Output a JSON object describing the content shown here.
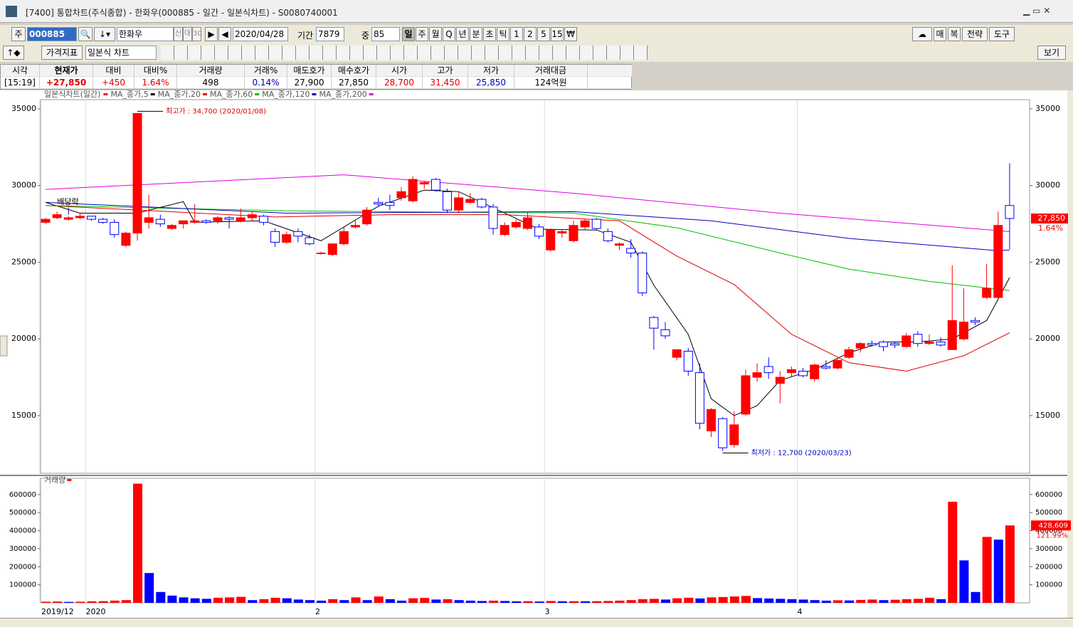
{
  "window": {
    "title": "[7400] 통합차트(주식종합) - 한화우(000885 - 일간 - 일본식차트) - S0080740001"
  },
  "toolbar": {
    "code_label": "주",
    "code": "000885",
    "name": "한화우",
    "name_tags": [
      "신",
      "대",
      "30"
    ],
    "date": "2020/04/28",
    "period_label": "기간",
    "period": "7879",
    "count_label": "중",
    "count": "85",
    "period_buttons": [
      "일",
      "주",
      "월",
      "Q",
      "년",
      "분",
      "초",
      "틱",
      "1",
      "2",
      "5",
      "15",
      "₩"
    ],
    "right_buttons": [
      "매",
      "복",
      "전략",
      "도구"
    ],
    "indicator": "가격지표",
    "chart_style": "일본식 차트",
    "view": "보기"
  },
  "quote": {
    "headers": [
      "시각",
      "현재가",
      "대비",
      "대비%",
      "거래량",
      "거래%",
      "매도호가",
      "매수호가",
      "시가",
      "고가",
      "저가",
      "거래대금"
    ],
    "row": [
      "[15:19]",
      "+27,850",
      "+450",
      "1.64%",
      "498",
      "0.14%",
      "27,900",
      "27,850",
      "28,700",
      "31,450",
      "25,850",
      "124억원"
    ]
  },
  "chart_data": {
    "type": "candlestick",
    "title": "일본식차트(일간)",
    "up_color": "#ff0000",
    "down_color": "#0000ff",
    "grid": true,
    "ylim": [
      11240,
      35600
    ],
    "yticks": [
      15000,
      20000,
      25000,
      30000,
      35000
    ],
    "xticks": [
      {
        "value": -0.5,
        "label": "2019/12"
      },
      {
        "value": 3.5,
        "label": "2020"
      },
      {
        "value": 23.5,
        "label": "2"
      },
      {
        "value": 43.5,
        "label": "3"
      },
      {
        "value": 65.5,
        "label": "4"
      }
    ],
    "open": [
      27600,
      27900,
      27800,
      27900,
      28000,
      27800,
      27600,
      26100,
      26900,
      27600,
      27800,
      27200,
      27500,
      27600,
      27700,
      27700,
      27900,
      27700,
      27900,
      28000,
      27000,
      26300,
      27000,
      26600,
      25600,
      25500,
      26200,
      27300,
      27500,
      28900,
      28900,
      29200,
      29000,
      30100,
      30400,
      29600,
      28400,
      28900,
      29100,
      28600,
      26800,
      27300,
      27200,
      27300,
      25800,
      26900,
      26400,
      27300,
      27800,
      27000,
      26100,
      25900,
      25600,
      21400,
      20600,
      18800,
      19200,
      17800,
      14000,
      14800,
      13100,
      15100,
      17500,
      18200,
      17100,
      17800,
      17900,
      17400,
      18200,
      18100,
      18800,
      19400,
      19700,
      19800,
      19700,
      19500,
      20300,
      19700,
      19800,
      19300,
      20000,
      21200,
      22700,
      22700,
      28700
    ],
    "high": [
      27900,
      28300,
      28000,
      28200,
      28000,
      27900,
      27800,
      27000,
      34700,
      29400,
      28100,
      27500,
      27700,
      28800,
      27800,
      28000,
      28000,
      28500,
      28300,
      28100,
      27200,
      27000,
      27200,
      26800,
      25700,
      26200,
      27300,
      27700,
      28600,
      29200,
      29400,
      29900,
      30600,
      30300,
      30500,
      29800,
      29600,
      29500,
      29200,
      28800,
      27600,
      27800,
      28300,
      27500,
      27200,
      27100,
      27700,
      27800,
      27900,
      27200,
      26300,
      26500,
      25700,
      21500,
      21100,
      19300,
      19400,
      18400,
      15500,
      14900,
      15300,
      18000,
      18400,
      18800,
      17900,
      18200,
      18100,
      18400,
      18600,
      18700,
      19500,
      19800,
      19900,
      19900,
      19800,
      20400,
      20500,
      20300,
      20100,
      24800,
      23300,
      21400,
      24900,
      28300,
      31450
    ],
    "low": [
      27500,
      27800,
      27700,
      27800,
      27700,
      27500,
      26600,
      26000,
      26400,
      27200,
      27300,
      27100,
      27200,
      27500,
      27500,
      27500,
      27200,
      27600,
      27700,
      27400,
      26000,
      26200,
      26300,
      26100,
      25500,
      25400,
      26100,
      27200,
      27400,
      28600,
      28400,
      29000,
      28900,
      29800,
      29600,
      28200,
      28200,
      28800,
      28500,
      26800,
      26700,
      27200,
      27100,
      26500,
      25700,
      26600,
      26300,
      27100,
      27100,
      26300,
      25800,
      25300,
      22800,
      19300,
      20000,
      18600,
      17600,
      14100,
      13600,
      12700,
      12900,
      15000,
      17200,
      17400,
      15800,
      17500,
      17500,
      17200,
      18000,
      18000,
      18700,
      19100,
      19500,
      19200,
      19400,
      19400,
      19500,
      19600,
      19500,
      19300,
      19900,
      20900,
      22600,
      22500,
      25850
    ],
    "close": [
      27800,
      28100,
      27900,
      28000,
      27800,
      27600,
      26800,
      26900,
      34700,
      27900,
      27500,
      27400,
      27700,
      27700,
      27600,
      27900,
      27800,
      27900,
      28100,
      27600,
      26300,
      26800,
      26700,
      26200,
      25600,
      26200,
      27000,
      27400,
      28400,
      28800,
      28700,
      29600,
      30400,
      30200,
      29700,
      28400,
      29200,
      29100,
      28600,
      27200,
      27400,
      27600,
      27900,
      26700,
      27100,
      27000,
      27400,
      27700,
      27200,
      26400,
      26200,
      25600,
      23000,
      20700,
      20200,
      19300,
      17900,
      14500,
      15400,
      12900,
      14400,
      17600,
      17800,
      17800,
      17500,
      18000,
      17600,
      18300,
      18100,
      18600,
      19300,
      19700,
      19600,
      19500,
      19600,
      20200,
      19700,
      19800,
      19600,
      21200,
      21100,
      21100,
      23300,
      27400,
      27850
    ],
    "series": [
      {
        "name": "MA_종가,5",
        "color": "#000000",
        "index": [
          0,
          3,
          8,
          12,
          13,
          19,
          24,
          29,
          33,
          36,
          40,
          43,
          48,
          51,
          53,
          56,
          58,
          60,
          62,
          64,
          67,
          70,
          73,
          76,
          79,
          82,
          84
        ],
        "values": [
          28900,
          28200,
          28200,
          28950,
          27600,
          27700,
          26400,
          28650,
          29700,
          29600,
          28200,
          27150,
          27100,
          26300,
          23500,
          20300,
          16100,
          15000,
          15650,
          17300,
          18000,
          19100,
          19800,
          19800,
          20000,
          21200,
          24000
        ]
      },
      {
        "name": "MA_종가,20",
        "color": "#e00000",
        "index": [
          0,
          8,
          20,
          30,
          40,
          50,
          55,
          60,
          65,
          70,
          75,
          80,
          84
        ],
        "values": [
          28700,
          28400,
          27950,
          28100,
          28100,
          27700,
          25400,
          23550,
          20300,
          18450,
          17900,
          18900,
          20400
        ]
      },
      {
        "name": "MA_종가,60",
        "color": "#00c000",
        "index": [
          0,
          21,
          46,
          55,
          64,
          70,
          77,
          84
        ],
        "values": [
          28700,
          28350,
          28200,
          27250,
          25600,
          24550,
          23750,
          23150
        ]
      },
      {
        "name": "MA_종가,120",
        "color": "#0000c0",
        "index": [
          0,
          21,
          46,
          58,
          70,
          83,
          84
        ],
        "values": [
          28900,
          28200,
          28300,
          27700,
          26550,
          25750,
          25800
        ]
      },
      {
        "name": "MA_종가,200",
        "color": "#e000e0",
        "index": [
          0,
          26,
          46,
          64,
          84
        ],
        "values": [
          29750,
          30700,
          29500,
          28200,
          27000
        ]
      }
    ],
    "annotations": [
      {
        "text": "최고가 : 34,700 (2020/01/08)",
        "index": 8,
        "value": 34700,
        "color": "#e00000"
      },
      {
        "text": "최저가 : 12,700 (2020/03/23)",
        "index": 59,
        "value": 12700,
        "color": "#0000c0"
      },
      {
        "text": "배당락",
        "index": 2,
        "value": 28000,
        "color": "#000000"
      }
    ],
    "last_label": "27,850",
    "last_change_label": "1.64%",
    "volume": {
      "title": "거래량",
      "ylim": [
        0,
        690000
      ],
      "yticks": [
        100000,
        200000,
        300000,
        400000,
        500000,
        600000
      ],
      "values": [
        6000,
        7000,
        5000,
        6000,
        8000,
        9000,
        12000,
        15000,
        660000,
        165000,
        60000,
        40000,
        30000,
        25000,
        22000,
        28000,
        30000,
        33000,
        15000,
        20000,
        28000,
        25000,
        18000,
        15000,
        12000,
        20000,
        15000,
        30000,
        15000,
        35000,
        20000,
        12000,
        25000,
        27000,
        18000,
        20000,
        15000,
        12000,
        10000,
        12000,
        10000,
        8000,
        9000,
        7000,
        10000,
        8000,
        9000,
        8000,
        9000,
        10000,
        12000,
        15000,
        20000,
        22000,
        18000,
        25000,
        28000,
        24000,
        30000,
        32000,
        35000,
        38000,
        26000,
        24000,
        22000,
        20000,
        18000,
        15000,
        12000,
        14000,
        13000,
        16000,
        18000,
        15000,
        17000,
        20000,
        22000,
        28000,
        20000,
        560000,
        235000,
        60000,
        365000,
        350000,
        428609
      ],
      "last_label": "428,609",
      "last_change_label": "121.99%"
    }
  }
}
